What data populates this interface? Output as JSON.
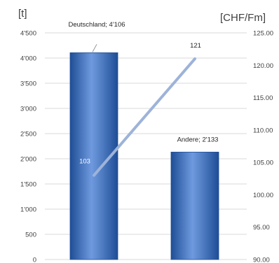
{
  "chart_data": {
    "type": "bar+line",
    "categories": [
      "Deutschland",
      "Andere"
    ],
    "series": [
      {
        "name": "",
        "type": "bar",
        "axis": "left",
        "values": [
          4106,
          2133
        ],
        "data_labels": [
          "Deutschland; 4'106",
          "Andere; 2'133"
        ]
      },
      {
        "name": "",
        "type": "line",
        "axis": "right",
        "values": [
          103,
          121
        ],
        "data_labels": [
          "103",
          "121"
        ]
      }
    ],
    "y_left": {
      "unit_label": "[t]",
      "range": [
        0,
        4500
      ],
      "ticks": [
        0,
        500,
        1000,
        1500,
        2000,
        2500,
        3000,
        3500,
        4000,
        4500
      ],
      "tick_labels": [
        "0",
        "500",
        "1'000",
        "1'500",
        "2'000",
        "2'500",
        "3'000",
        "3'500",
        "4'000",
        "4'500"
      ]
    },
    "y_right": {
      "unit_label": "[CHF/Fm]",
      "range": [
        90,
        125
      ],
      "ticks": [
        90,
        95,
        100,
        105,
        110,
        115,
        120,
        125
      ],
      "tick_labels": [
        "90.00",
        "95.00",
        "100.00",
        "105.00",
        "110.00",
        "115.00",
        "120.00",
        "125.00"
      ]
    },
    "grid": true,
    "legend": "none",
    "colors": {
      "bar": "#3a70c4",
      "bar_light": "#6f9ae0",
      "bar_dark": "#1f4e96",
      "line": "#9db3d9",
      "grid": "#d9d9d9"
    }
  }
}
